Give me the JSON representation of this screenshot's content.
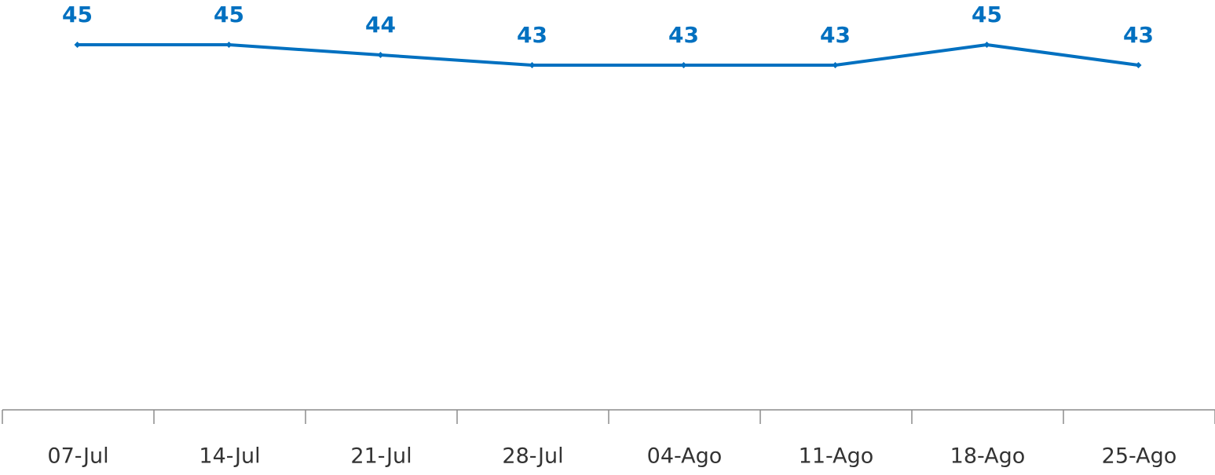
{
  "chart_data": {
    "type": "line",
    "categories": [
      "07-Jul",
      "14-Jul",
      "21-Jul",
      "28-Jul",
      "04-Ago",
      "11-Ago",
      "18-Ago",
      "25-Ago"
    ],
    "values": [
      45,
      45,
      44,
      43,
      43,
      43,
      45,
      43
    ],
    "color": "#0070c0"
  }
}
